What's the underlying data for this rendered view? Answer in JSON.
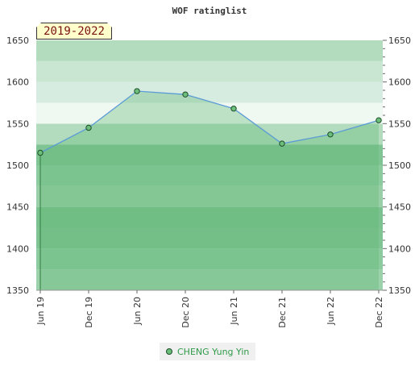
{
  "chart_data": {
    "type": "area",
    "title": "WOF ratinglist",
    "period": "2019-2022",
    "x": [
      "Jun 19",
      "Dec 19",
      "Jun 20",
      "Dec 20",
      "Jun 21",
      "Dec 21",
      "Jun 22",
      "Dec 22"
    ],
    "series": [
      {
        "name": "CHENG Yung Yin",
        "values": [
          1515,
          1545,
          1589,
          1585,
          1568,
          1526,
          1537,
          1554
        ]
      }
    ],
    "ylim": [
      1350,
      1650
    ],
    "yticks": [
      1350,
      1400,
      1450,
      1500,
      1550,
      1600,
      1650
    ],
    "y_axis_both_sides": true,
    "grid": false,
    "legend_position": "bottom-center",
    "colors": {
      "line": "#5b9bd5",
      "marker_fill": "#6bbf7a",
      "marker_stroke": "#1e4d2a",
      "area_fill": "#5fb874",
      "legend_text": "#2e9a4a",
      "period_text": "#7a1111",
      "period_bg": "#ffffcc"
    }
  }
}
